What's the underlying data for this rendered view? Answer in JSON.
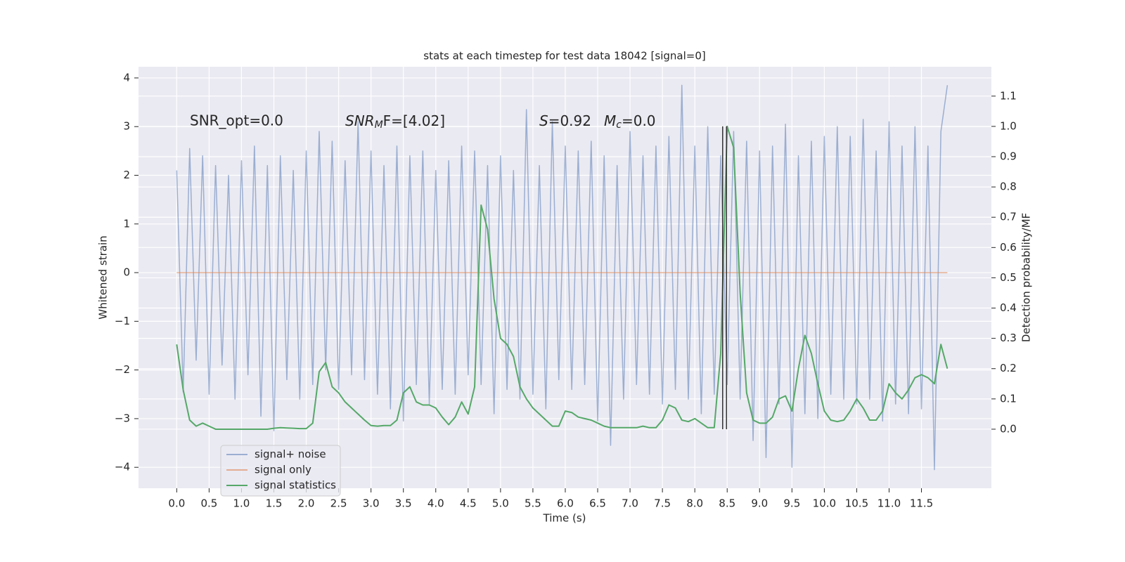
{
  "chart_data": {
    "type": "line",
    "title": "stats at each timestep for test data 18042 [signal=0]",
    "xlabel": "Time (s)",
    "ylabel": "Whitened strain",
    "y2label": "Detection probability/MF",
    "annotations": [
      "SNR_opt=0.0",
      [
        "SNR",
        "M",
        "F=[4.02]"
      ],
      [
        "S",
        "=0.92",
        "M",
        "c",
        "=0.0"
      ]
    ],
    "x": [
      0.0,
      0.1,
      0.2,
      0.3,
      0.4,
      0.5,
      0.6,
      0.7,
      0.8,
      0.9,
      1.0,
      1.1,
      1.2,
      1.3,
      1.4,
      1.5,
      1.6,
      1.7,
      1.8,
      1.9,
      2.0,
      2.1,
      2.2,
      2.3,
      2.4,
      2.5,
      2.6,
      2.7,
      2.8,
      2.9,
      3.0,
      3.1,
      3.2,
      3.3,
      3.4,
      3.5,
      3.6,
      3.7,
      3.8,
      3.9,
      4.0,
      4.1,
      4.2,
      4.3,
      4.4,
      4.5,
      4.6,
      4.7,
      4.8,
      4.9,
      5.0,
      5.1,
      5.2,
      5.3,
      5.4,
      5.5,
      5.6,
      5.7,
      5.8,
      5.9,
      6.0,
      6.1,
      6.2,
      6.3,
      6.4,
      6.5,
      6.6,
      6.7,
      6.8,
      6.9,
      7.0,
      7.1,
      7.2,
      7.3,
      7.4,
      7.5,
      7.6,
      7.7,
      7.8,
      7.9,
      8.0,
      8.1,
      8.2,
      8.3,
      8.4,
      8.5,
      8.6,
      8.7,
      8.8,
      8.9,
      9.0,
      9.1,
      9.2,
      9.3,
      9.4,
      9.5,
      9.6,
      9.7,
      9.8,
      9.9,
      10.0,
      10.1,
      10.2,
      10.3,
      10.4,
      10.5,
      10.6,
      10.7,
      10.8,
      10.9,
      11.0,
      11.1,
      11.2,
      11.3,
      11.4,
      11.5,
      11.6,
      11.7,
      11.8,
      11.9
    ],
    "series": [
      {
        "name": "signal+ noise",
        "color": "#4c72b0",
        "opacity": 0.5,
        "values": [
          2.1,
          -2.45,
          2.55,
          -1.8,
          2.4,
          -2.5,
          2.2,
          -1.9,
          2.0,
          -2.6,
          2.3,
          -2.1,
          2.6,
          -2.95,
          2.2,
          -3.25,
          2.4,
          -2.2,
          2.1,
          -2.6,
          2.5,
          -2.3,
          2.9,
          -2.0,
          2.7,
          -2.4,
          2.3,
          -2.1,
          3.1,
          -2.2,
          2.5,
          -2.5,
          2.2,
          -2.8,
          2.6,
          -3.05,
          2.4,
          -2.3,
          2.5,
          -2.7,
          2.1,
          -2.4,
          2.3,
          -2.5,
          2.6,
          -2.1,
          2.5,
          -2.3,
          2.2,
          -2.9,
          2.4,
          -2.4,
          2.1,
          -2.6,
          3.35,
          -2.5,
          2.2,
          -2.8,
          3.1,
          -2.2,
          2.6,
          -2.4,
          2.5,
          -2.3,
          2.7,
          -3.05,
          2.4,
          -3.55,
          2.2,
          -2.6,
          2.9,
          -2.3,
          2.4,
          -2.5,
          2.6,
          -2.7,
          2.8,
          -2.4,
          3.85,
          -2.6,
          2.6,
          -2.9,
          3.0,
          -2.5,
          2.4,
          -2.3,
          2.9,
          -2.6,
          2.7,
          -3.45,
          2.5,
          -3.8,
          2.6,
          -2.7,
          3.05,
          -4.0,
          2.4,
          -2.9,
          2.7,
          -3.0,
          2.8,
          -2.5,
          3.0,
          -2.6,
          2.8,
          -2.7,
          3.15,
          -2.6,
          2.5,
          -3.05,
          3.1,
          -2.7,
          2.6,
          -2.9,
          3.0,
          -2.8,
          2.6,
          -4.05,
          2.9,
          3.85
        ]
      },
      {
        "name": "signal only",
        "color": "#dd8452",
        "opacity": 0.6,
        "values": [
          0,
          0,
          0,
          0,
          0,
          0,
          0,
          0,
          0,
          0,
          0,
          0,
          0,
          0,
          0,
          0,
          0,
          0,
          0,
          0,
          0,
          0,
          0,
          0,
          0,
          0,
          0,
          0,
          0,
          0,
          0,
          0,
          0,
          0,
          0,
          0,
          0,
          0,
          0,
          0,
          0,
          0,
          0,
          0,
          0,
          0,
          0,
          0,
          0,
          0,
          0,
          0,
          0,
          0,
          0,
          0,
          0,
          0,
          0,
          0,
          0,
          0,
          0,
          0,
          0,
          0,
          0,
          0,
          0,
          0,
          0,
          0,
          0,
          0,
          0,
          0,
          0,
          0,
          0,
          0,
          0,
          0,
          0,
          0,
          0,
          0,
          0,
          0,
          0,
          0,
          0,
          0,
          0,
          0,
          0,
          0,
          0,
          0,
          0,
          0,
          0,
          0,
          0,
          0,
          0,
          0,
          0,
          0,
          0,
          0,
          0,
          0,
          0,
          0,
          0,
          0,
          0,
          0,
          0,
          0
        ]
      },
      {
        "name": "signal statistics",
        "color": "#55a868",
        "opacity": 1,
        "axis": "y2",
        "values": [
          0.28,
          0.13,
          0.03,
          0.01,
          0.02,
          0.01,
          0.0,
          0.0,
          0.0,
          0.0,
          0.0,
          0.0,
          0.0,
          0.0,
          0.0,
          0.003,
          0.005,
          0.004,
          0.003,
          0.002,
          0.002,
          0.02,
          0.19,
          0.22,
          0.14,
          0.12,
          0.09,
          0.07,
          0.05,
          0.03,
          0.012,
          0.01,
          0.012,
          0.012,
          0.03,
          0.12,
          0.14,
          0.09,
          0.08,
          0.08,
          0.07,
          0.04,
          0.015,
          0.04,
          0.09,
          0.05,
          0.14,
          0.74,
          0.66,
          0.43,
          0.3,
          0.28,
          0.24,
          0.14,
          0.1,
          0.07,
          0.05,
          0.03,
          0.01,
          0.01,
          0.06,
          0.055,
          0.04,
          0.035,
          0.03,
          0.02,
          0.01,
          0.005,
          0.005,
          0.005,
          0.005,
          0.005,
          0.01,
          0.005,
          0.005,
          0.03,
          0.08,
          0.07,
          0.03,
          0.025,
          0.035,
          0.02,
          0.005,
          0.005,
          0.25,
          1.0,
          0.93,
          0.45,
          0.12,
          0.03,
          0.02,
          0.02,
          0.04,
          0.1,
          0.11,
          0.06,
          0.2,
          0.31,
          0.25,
          0.15,
          0.06,
          0.03,
          0.025,
          0.03,
          0.06,
          0.1,
          0.07,
          0.03,
          0.03,
          0.06,
          0.15,
          0.12,
          0.1,
          0.13,
          0.17,
          0.18,
          0.17,
          0.15,
          0.28,
          0.2
        ]
      }
    ],
    "vlines": [
      8.43,
      8.49
    ],
    "vline_span": [
      0,
      1
    ],
    "vline_color": "#333333",
    "xlim": [
      -0.59,
      12.58
    ],
    "ylim": [
      -4.43,
      4.23
    ],
    "y2lim": [
      -0.195,
      1.197
    ],
    "xticks": [
      {
        "value": 0,
        "label": "0.0"
      },
      0.5,
      {
        "value": 1,
        "label": "1.0"
      },
      1.5,
      {
        "value": 2,
        "label": "2.0"
      },
      2.5,
      {
        "value": 3,
        "label": "3.0"
      },
      3.5,
      {
        "value": 4,
        "label": "4.0"
      },
      4.5,
      {
        "value": 5,
        "label": "5.0"
      },
      5.5,
      {
        "value": 6,
        "label": "6.0"
      },
      6.5,
      {
        "value": 7,
        "label": "7.0"
      },
      7.5,
      {
        "value": 8,
        "label": "8.0"
      },
      8.5,
      {
        "value": 9,
        "label": "9.0"
      },
      9.5,
      {
        "value": 10,
        "label": "10.0"
      },
      10.5,
      {
        "value": 11,
        "label": "11.0"
      },
      11.5
    ],
    "yticks": [
      {
        "value": -4,
        "label": "−4"
      },
      {
        "value": -3,
        "label": "−3"
      },
      {
        "value": -2,
        "label": "−2"
      },
      {
        "value": -1,
        "label": "−1"
      },
      0,
      1,
      2,
      3,
      4
    ],
    "y2ticks": [
      {
        "value": 0,
        "label": "0.0"
      },
      0.1,
      0.2,
      0.3,
      0.4,
      0.5,
      0.6,
      0.7,
      0.8,
      0.9,
      {
        "value": 1,
        "label": "1.0"
      },
      1.1
    ],
    "grid": true,
    "legend": "lower left"
  }
}
